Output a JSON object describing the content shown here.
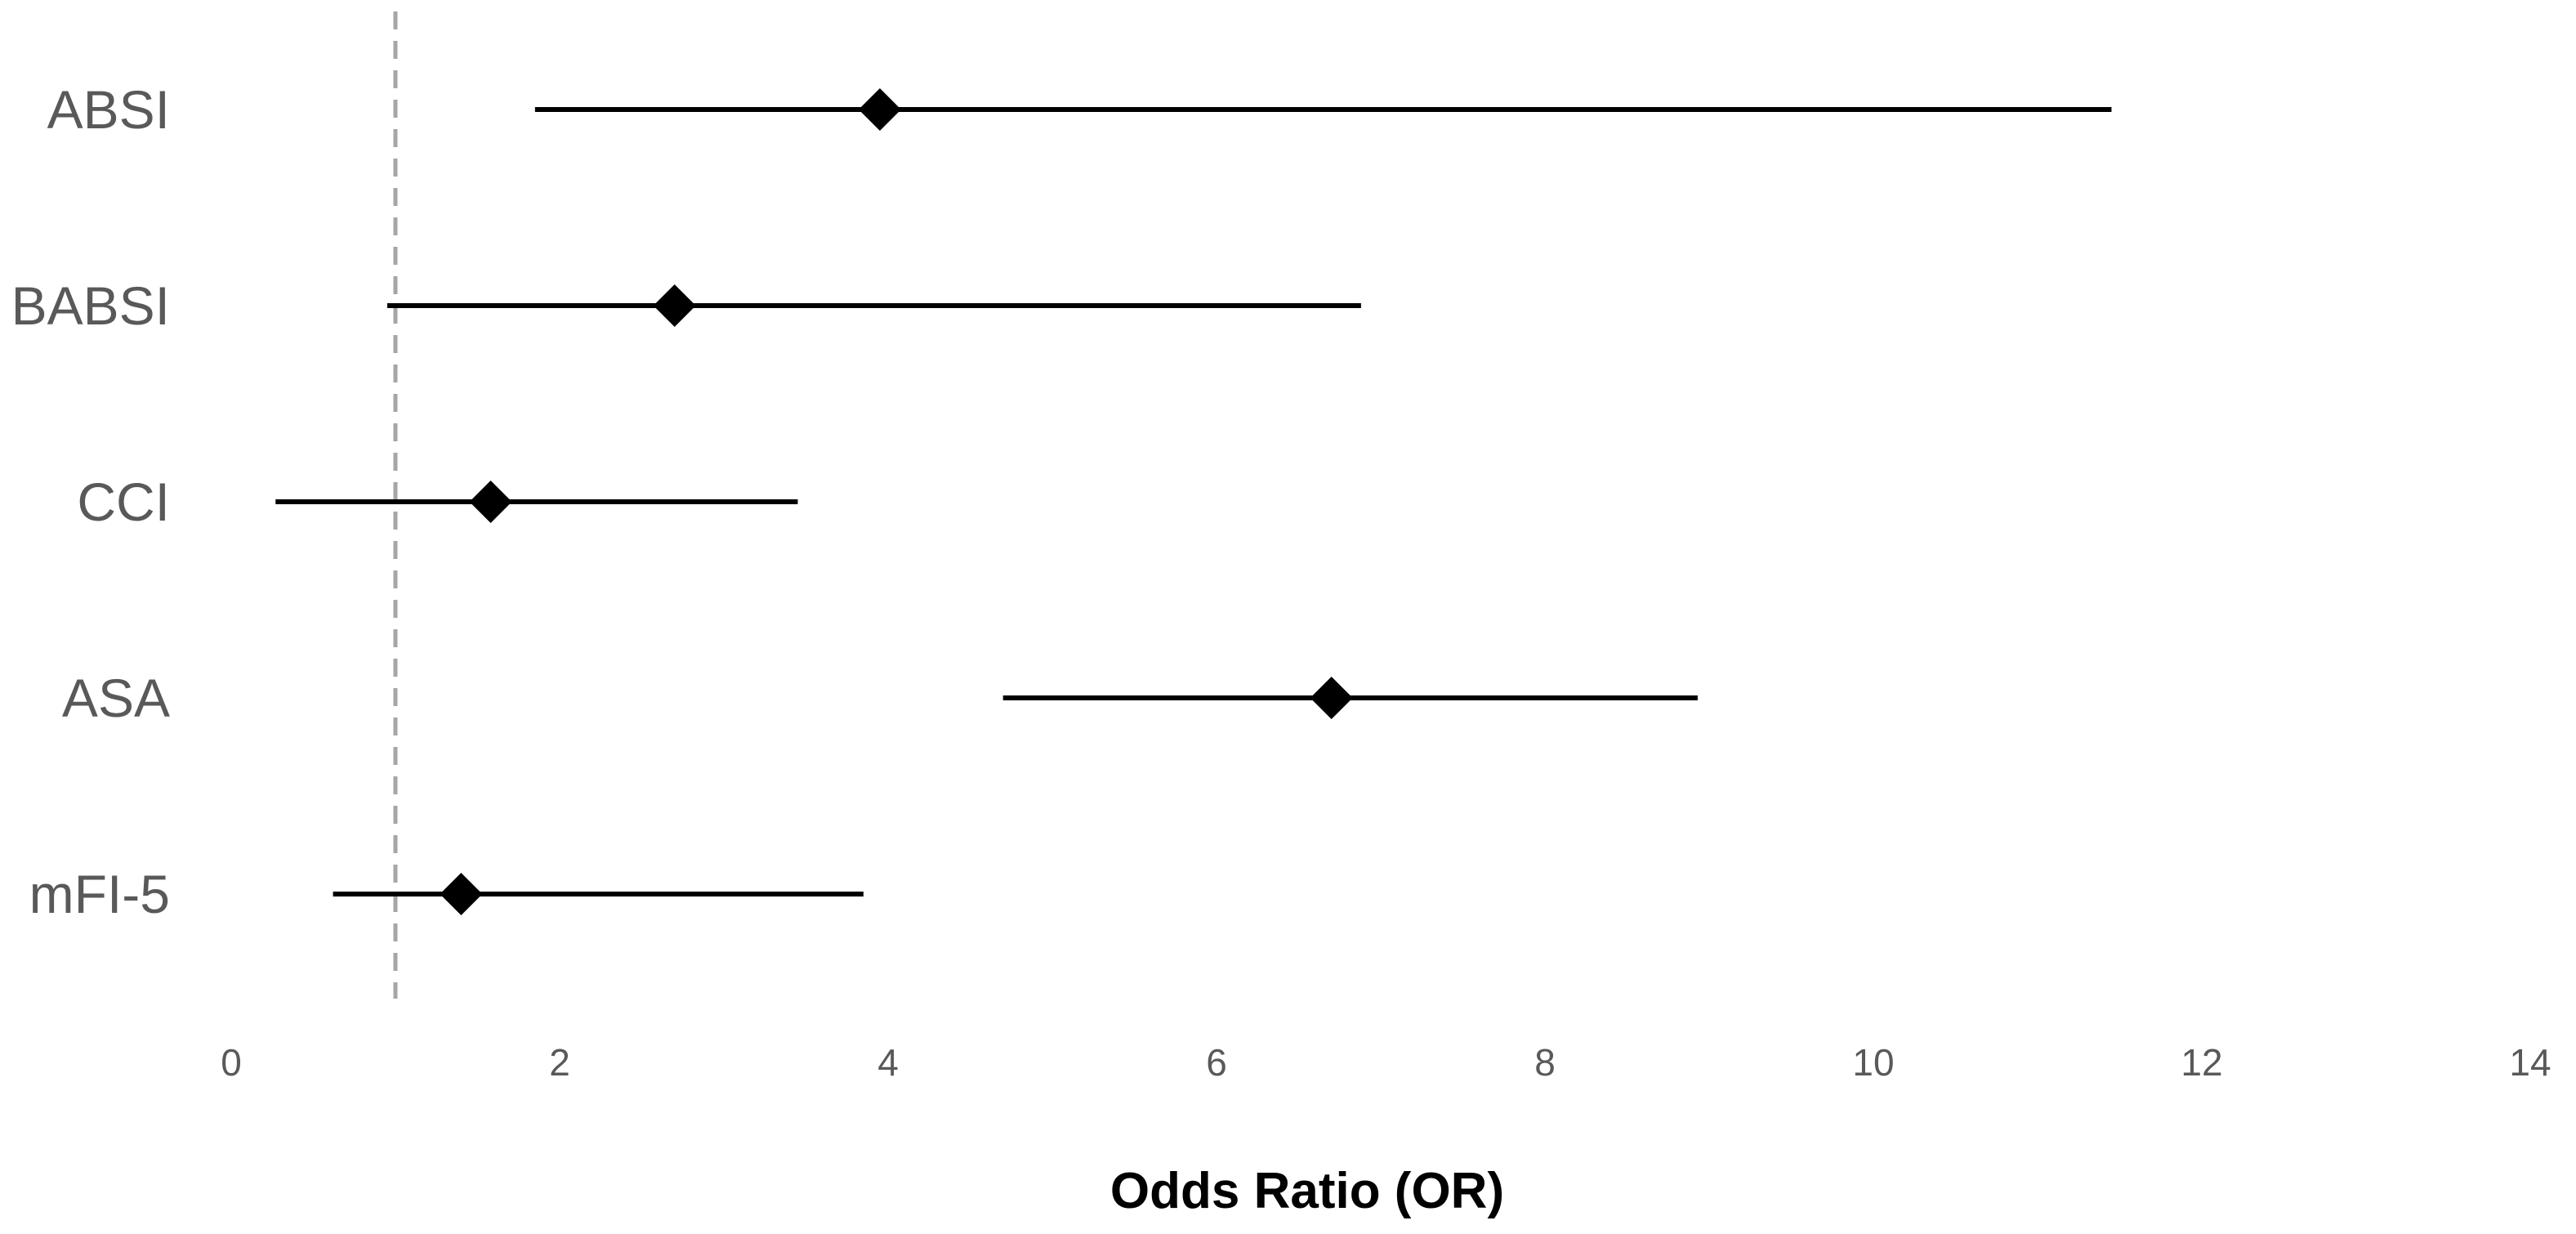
{
  "chart_data": {
    "type": "scatter",
    "subtype": "forest-plot",
    "title": "",
    "xlabel": "Odds Ratio (OR)",
    "ylabel": "",
    "xlim": [
      0,
      14
    ],
    "x_ticks": [
      0,
      2,
      4,
      6,
      8,
      10,
      12,
      14
    ],
    "grid": false,
    "reference_line": {
      "x": 1,
      "style": "dashed",
      "color": "#a6a6a6"
    },
    "marker": "diamond",
    "marker_color": "#000000",
    "line_color": "#000000",
    "categories": [
      "ABSI",
      "BABSI",
      "CCI",
      "ASA",
      "mFI-5"
    ],
    "estimates": [
      3.95,
      2.7,
      1.58,
      6.7,
      1.4
    ],
    "ci_lower": [
      1.85,
      0.95,
      0.27,
      4.7,
      0.62
    ],
    "ci_upper": [
      11.45,
      6.88,
      3.45,
      8.93,
      3.85
    ]
  }
}
